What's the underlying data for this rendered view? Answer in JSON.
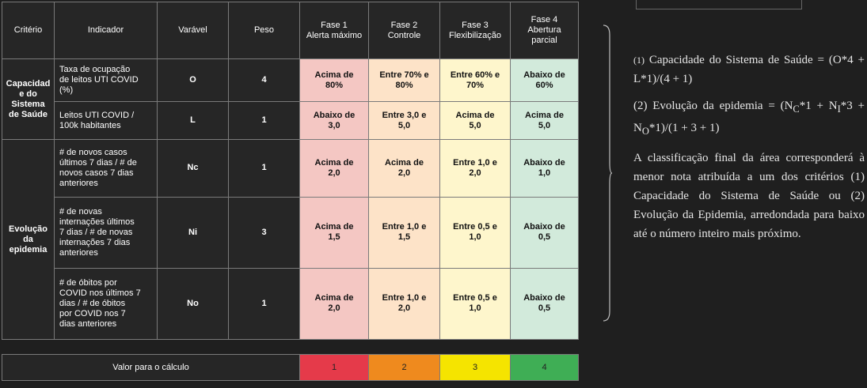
{
  "table": {
    "headers": {
      "criterio": "Critério",
      "indicador": "Indicador",
      "varavel": "Varável",
      "peso": "Peso",
      "fase1_line1": "Fase 1",
      "fase1_line2": "Alerta máximo",
      "fase2_line1": "Fase 2",
      "fase2_line2": "Controle",
      "fase3_line1": "Fase 3",
      "fase3_line2": "Flexibilização",
      "fase4_line1": "Fase 4",
      "fase4_line2": "Abertura",
      "fase4_line3": "parcial"
    },
    "groups": [
      {
        "criterio": [
          "Capacidad",
          "e do",
          "Sistema",
          "de Saúde"
        ]
      },
      {
        "criterio": [
          "Evolução",
          "da",
          "epidemia"
        ]
      }
    ],
    "rows": [
      {
        "indicador": [
          "Taxa de ocupação",
          "de leitos UTI COVID",
          "(%)"
        ],
        "var": "O",
        "peso": "4",
        "f1": [
          "Acima de",
          "80%"
        ],
        "f2": [
          "Entre 70% e",
          "80%"
        ],
        "f3": [
          "Entre 60% e",
          "70%"
        ],
        "f4": [
          "Abaixo de",
          "60%"
        ]
      },
      {
        "indicador": [
          "Leitos UTI COVID /",
          "100k habitantes"
        ],
        "var": "L",
        "peso": "1",
        "f1": [
          "Abaixo de",
          "3,0"
        ],
        "f2": [
          "Entre 3,0 e",
          "5,0"
        ],
        "f3": [
          "Acima de",
          "5,0"
        ],
        "f4": [
          "Acima de",
          "5,0"
        ]
      },
      {
        "indicador": [
          "# de novos casos",
          "últimos 7 dias / # de",
          "novos casos 7 dias",
          "anteriores"
        ],
        "var": "Nc",
        "peso": "1",
        "f1": [
          "Acima de",
          "2,0"
        ],
        "f2": [
          "Acima de",
          "2,0"
        ],
        "f3": [
          "Entre 1,0 e",
          "2,0"
        ],
        "f4": [
          "Abaixo de",
          "1,0"
        ]
      },
      {
        "indicador": [
          "# de novas",
          "internações últimos",
          "7 dias / # de novas",
          "internações 7 dias",
          "anteriores"
        ],
        "var": "Ni",
        "peso": "3",
        "f1": [
          "Acima de",
          "1,5"
        ],
        "f2": [
          "Entre 1,0 e",
          "1,5"
        ],
        "f3": [
          "Entre 0,5 e",
          "1,0"
        ],
        "f4": [
          "Abaixo de",
          "0,5"
        ]
      },
      {
        "indicador": [
          "# de óbitos por",
          "COVID nos últimos 7",
          "dias / # de óbitos",
          "por COVID nos 7",
          "dias anteriores"
        ],
        "var": "No",
        "peso": "1",
        "f1": [
          "Acima de",
          "2,0"
        ],
        "f2": [
          "Entre 1,0 e",
          "2,0"
        ],
        "f3": [
          "Entre 0,5 e",
          "1,0"
        ],
        "f4": [
          "Abaixo de",
          "0,5"
        ]
      }
    ]
  },
  "calc": {
    "label": "Valor para o cálculo",
    "values": [
      "1",
      "2",
      "3",
      "4"
    ]
  },
  "side": {
    "p1_num": "(1)",
    "p1_text": " Capacidade do Sistema de Saúde = (O*4 + L*1)/(4 + 1)",
    "p2_text": "(2) Evolução da epidemia = (N",
    "p2_sub1": "C",
    "p2_mid1": "*1 + N",
    "p2_sub2": "I",
    "p2_mid2": "*3 + N",
    "p2_sub3": "O",
    "p2_end": "*1)/(1 + 3 + 1)",
    "p3_text": "A classificação final da área corresponderá à menor nota atribuída a um dos critérios (1) Capacidade do Sistema de Saúde ou (2) Evolução da Epidemia, arredondada para baixo até o número inteiro mais próximo."
  },
  "colors": {
    "fase1": "#e53a4a",
    "fase2": "#ef8a1e",
    "fase3": "#f5e400",
    "fase4": "#3fae55"
  }
}
